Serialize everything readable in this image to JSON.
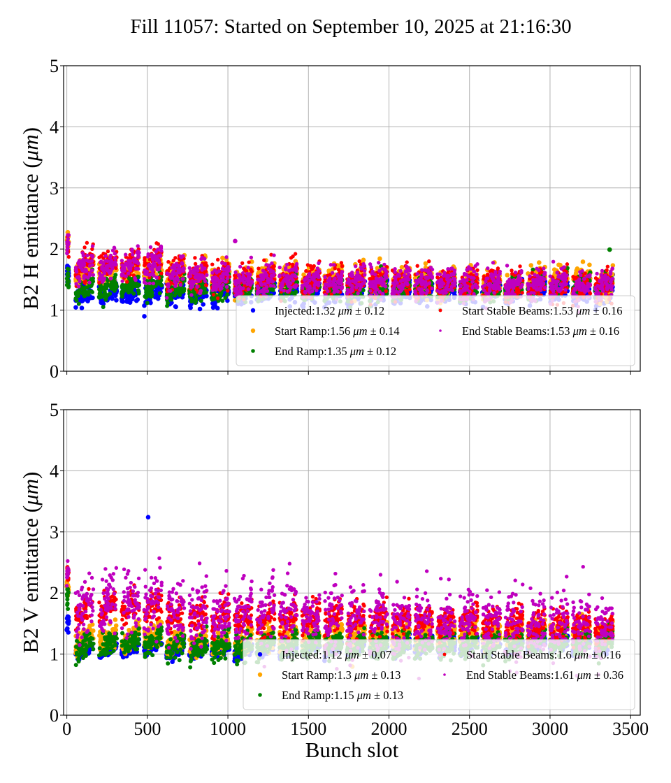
{
  "title": "Fill 11057: Started on September 10, 2025 at 21:16:30",
  "chart_data": [
    {
      "type": "scatter",
      "id": "h",
      "title": "",
      "xlabel": "",
      "ylabel_prefix": "B2 H emittance (",
      "ylabel_unit": "μm",
      "ylabel_suffix": ")",
      "xlim": [
        -20,
        3560
      ],
      "ylim": [
        0,
        5
      ],
      "xticks": [
        0,
        500,
        1000,
        1500,
        2000,
        2500,
        3000,
        3500
      ],
      "xtick_labels_visible": false,
      "yticks": [
        "0",
        "1",
        "2",
        "3",
        "4",
        "5"
      ],
      "grid": true,
      "legend_position": "lower-right",
      "series": [
        {
          "name": "Injected",
          "color": "#0000ff",
          "mean": 1.32,
          "std": 0.12,
          "legend": "Injected:1.32 μm ± 0.12"
        },
        {
          "name": "Start Ramp",
          "color": "#ffa500",
          "mean": 1.56,
          "std": 0.14,
          "legend": "Start Ramp:1.56 μm ± 0.14"
        },
        {
          "name": "End Ramp",
          "color": "#008000",
          "mean": 1.35,
          "std": 0.12,
          "legend": "End Ramp:1.35 μm ± 0.12"
        },
        {
          "name": "Start Stable Beams",
          "color": "#ff0000",
          "mean": 1.53,
          "std": 0.16,
          "legend": "Start Stable Beams:1.53 μm ± 0.16"
        },
        {
          "name": "End Stable Beams",
          "color": "#bf00bf",
          "mean": 1.53,
          "std": 0.16,
          "legend": "End Stable Beams:1.53 μm ± 0.16"
        }
      ],
      "first_train": {
        "x": [
          0,
          12
        ],
        "values": {
          "Injected": 1.6,
          "Start Ramp": 2.05,
          "End Ramp": 1.55,
          "Start Stable Beams": 2.1,
          "End Stable Beams": 2.05
        }
      },
      "trains_start": [
        55,
        200,
        340,
        480,
        620,
        760,
        900,
        1040,
        1180,
        1320,
        1460,
        1600,
        1740,
        1880,
        2020,
        2160,
        2300,
        2440,
        2580,
        2720,
        2860,
        3000,
        3140,
        3280
      ],
      "train_length": 110,
      "train_means": {
        "Injected": [
          1.28,
          1.28,
          1.3,
          1.3,
          1.28,
          1.26,
          1.28,
          1.28,
          1.3,
          1.3,
          1.3,
          1.3,
          1.28,
          1.3,
          1.3,
          1.28,
          1.3,
          1.3,
          1.3,
          1.3,
          1.32,
          1.32,
          1.32,
          1.3
        ],
        "Start Ramp": [
          1.65,
          1.65,
          1.68,
          1.68,
          1.6,
          1.55,
          1.55,
          1.5,
          1.55,
          1.55,
          1.5,
          1.5,
          1.48,
          1.5,
          1.5,
          1.48,
          1.45,
          1.45,
          1.45,
          1.42,
          1.5,
          1.55,
          1.5,
          1.42
        ],
        "End Ramp": [
          1.35,
          1.35,
          1.38,
          1.4,
          1.35,
          1.33,
          1.35,
          1.33,
          1.35,
          1.35,
          1.35,
          1.35,
          1.33,
          1.35,
          1.35,
          1.35,
          1.35,
          1.35,
          1.35,
          1.35,
          1.4,
          1.42,
          1.42,
          1.4
        ],
        "Start Stable Beams": [
          1.72,
          1.72,
          1.75,
          1.75,
          1.62,
          1.58,
          1.55,
          1.5,
          1.52,
          1.52,
          1.5,
          1.48,
          1.47,
          1.48,
          1.47,
          1.45,
          1.44,
          1.43,
          1.42,
          1.4,
          1.42,
          1.42,
          1.4,
          1.38
        ],
        "End Stable Beams": [
          1.7,
          1.7,
          1.72,
          1.72,
          1.6,
          1.55,
          1.52,
          1.48,
          1.5,
          1.5,
          1.48,
          1.47,
          1.46,
          1.48,
          1.46,
          1.45,
          1.43,
          1.43,
          1.42,
          1.4,
          1.42,
          1.42,
          1.4,
          1.38
        ]
      },
      "outliers": [
        {
          "series": "End Stable Beams",
          "x": 1045,
          "y": 2.13
        },
        {
          "series": "End Ramp",
          "x": 3370,
          "y": 1.99
        }
      ]
    },
    {
      "type": "scatter",
      "id": "v",
      "title": "",
      "xlabel": "Bunch slot",
      "ylabel_prefix": "B2 V emittance (",
      "ylabel_unit": "μm",
      "ylabel_suffix": ")",
      "xlim": [
        -20,
        3560
      ],
      "ylim": [
        0,
        5
      ],
      "xticks": [
        0,
        500,
        1000,
        1500,
        2000,
        2500,
        3000,
        3500
      ],
      "xtick_labels": [
        "0",
        "500",
        "1000",
        "1500",
        "2000",
        "2500",
        "3000",
        "3500"
      ],
      "yticks": [
        "0",
        "1",
        "2",
        "3",
        "4",
        "5"
      ],
      "grid": true,
      "legend_position": "lower-right",
      "series": [
        {
          "name": "Injected",
          "color": "#0000ff",
          "mean": 1.12,
          "std": 0.07,
          "legend": "Injected:1.12 μm ± 0.07"
        },
        {
          "name": "Start Ramp",
          "color": "#ffa500",
          "mean": 1.3,
          "std": 0.13,
          "legend": "Start Ramp:1.3 μm ± 0.13"
        },
        {
          "name": "End Ramp",
          "color": "#008000",
          "mean": 1.15,
          "std": 0.13,
          "legend": "End Ramp:1.15 μm ± 0.13"
        },
        {
          "name": "Start Stable Beams",
          "color": "#ff0000",
          "mean": 1.6,
          "std": 0.16,
          "legend": "Start Stable Beams:1.6 μm ± 0.16"
        },
        {
          "name": "End Stable Beams",
          "color": "#bf00bf",
          "mean": 1.61,
          "std": 0.36,
          "legend": "End Stable Beams:1.61 μm ± 0.36"
        }
      ],
      "first_train": {
        "x": [
          0,
          12
        ],
        "values": {
          "Injected": 1.45,
          "Start Ramp": 2.1,
          "End Ramp": 1.95,
          "Start Stable Beams": 2.3,
          "End Stable Beams": 2.35
        }
      },
      "trains_start": [
        55,
        200,
        340,
        480,
        620,
        760,
        900,
        1040,
        1180,
        1320,
        1460,
        1600,
        1740,
        1880,
        2020,
        2160,
        2300,
        2440,
        2580,
        2720,
        2860,
        3000,
        3140,
        3280
      ],
      "train_length": 110,
      "train_means": {
        "Injected": [
          1.08,
          1.08,
          1.1,
          1.12,
          1.06,
          1.06,
          1.08,
          1.04,
          1.08,
          1.1,
          1.1,
          1.1,
          1.1,
          1.1,
          1.12,
          1.12,
          1.12,
          1.12,
          1.12,
          1.12,
          1.14,
          1.14,
          1.14,
          1.12
        ],
        "Start Ramp": [
          1.22,
          1.25,
          1.28,
          1.3,
          1.22,
          1.2,
          1.22,
          1.2,
          1.25,
          1.28,
          1.28,
          1.3,
          1.3,
          1.3,
          1.3,
          1.3,
          1.32,
          1.32,
          1.32,
          1.35,
          1.38,
          1.38,
          1.38,
          1.32
        ],
        "End Ramp": [
          1.12,
          1.15,
          1.18,
          1.22,
          1.12,
          1.1,
          1.12,
          1.1,
          1.15,
          1.15,
          1.15,
          1.15,
          1.15,
          1.15,
          1.15,
          1.15,
          1.15,
          1.15,
          1.15,
          1.18,
          1.2,
          1.2,
          1.2,
          1.18
        ],
        "Start Stable Beams": [
          1.75,
          1.75,
          1.78,
          1.78,
          1.68,
          1.62,
          1.62,
          1.58,
          1.58,
          1.6,
          1.58,
          1.58,
          1.56,
          1.58,
          1.56,
          1.55,
          1.52,
          1.55,
          1.52,
          1.48,
          1.48,
          1.48,
          1.45,
          1.4
        ],
        "End Stable Beams": [
          1.78,
          1.78,
          1.8,
          1.82,
          1.7,
          1.65,
          1.65,
          1.62,
          1.62,
          1.62,
          1.6,
          1.62,
          1.58,
          1.6,
          1.58,
          1.56,
          1.55,
          1.56,
          1.52,
          1.48,
          1.48,
          1.48,
          1.45,
          1.4
        ]
      },
      "outliers": [
        {
          "series": "Injected",
          "x": 505,
          "y": 3.24
        }
      ]
    }
  ]
}
